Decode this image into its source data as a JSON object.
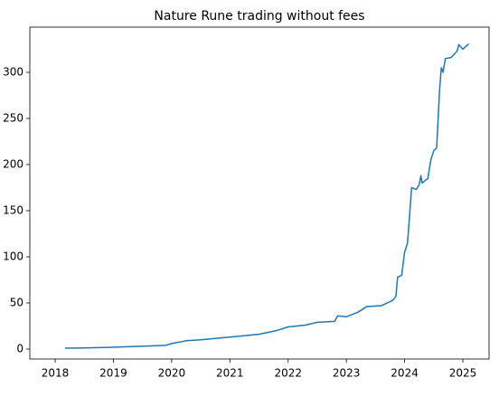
{
  "chart_data": {
    "type": "line",
    "title": "Nature Rune trading without fees",
    "x": [
      2018.17,
      2018.5,
      2019.0,
      2019.5,
      2019.9,
      2020.0,
      2020.25,
      2020.5,
      2021.0,
      2021.5,
      2021.8,
      2022.0,
      2022.3,
      2022.5,
      2022.8,
      2022.85,
      2023.0,
      2023.2,
      2023.35,
      2023.6,
      2023.8,
      2023.85,
      2023.88,
      2023.95,
      2024.0,
      2024.05,
      2024.08,
      2024.12,
      2024.2,
      2024.25,
      2024.28,
      2024.3,
      2024.4,
      2024.45,
      2024.5,
      2024.55,
      2024.6,
      2024.63,
      2024.66,
      2024.7,
      2024.8,
      2024.9,
      2024.93,
      2025.0,
      2025.05,
      2025.1
    ],
    "series": [
      {
        "color": "#1f77b4",
        "values": [
          1,
          1.2,
          2,
          3,
          4,
          6,
          9,
          10,
          13,
          16,
          20,
          24,
          26,
          29,
          30,
          36,
          35,
          40,
          46,
          47,
          53,
          57,
          78,
          80,
          105,
          115,
          140,
          175,
          173,
          178,
          188,
          180,
          185,
          205,
          215,
          218,
          280,
          305,
          300,
          315,
          316,
          323,
          330,
          325,
          328,
          331
        ]
      }
    ],
    "xlim": [
      2017.565,
      2025.45
    ],
    "xticks": [
      2018,
      2019,
      2020,
      2021,
      2022,
      2023,
      2024,
      2025
    ],
    "ylim": [
      -10.8,
      349
    ],
    "yticks": [
      0,
      50,
      100,
      150,
      200,
      250,
      300
    ]
  }
}
